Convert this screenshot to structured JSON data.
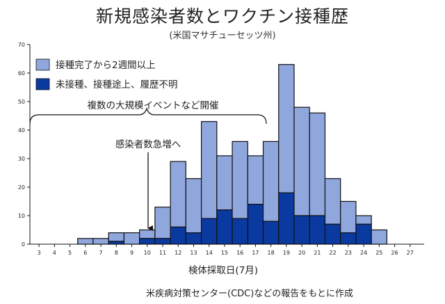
{
  "header": {
    "title": "新規感染者数とワクチン接種歴",
    "subtitle": "(米国マサチューセッツ州)"
  },
  "footer": {
    "source": "米疾病対策センター(CDC)などの報告をもとに作成"
  },
  "colors": {
    "vaccinated": "#8fa7dd",
    "unvaccinated": "#0a3aa0",
    "outline": "#111111"
  },
  "chart_data": {
    "type": "bar",
    "stacked": true,
    "xlabel": "検体採取日(7月)",
    "ylabel": "",
    "ylim": [
      0,
      70
    ],
    "yticks": [
      0,
      10,
      20,
      30,
      40,
      50,
      60,
      70
    ],
    "categories": [
      "3",
      "4",
      "5",
      "6",
      "7",
      "8",
      "9",
      "10",
      "11",
      "12",
      "13",
      "14",
      "15",
      "16",
      "17",
      "18",
      "19",
      "20",
      "21",
      "22",
      "23",
      "24",
      "25",
      "26",
      "27"
    ],
    "series": [
      {
        "name": "未接種、接種途上、履歴不明",
        "values": [
          0,
          0,
          0,
          0,
          0,
          1,
          0,
          2,
          2,
          6,
          4,
          9,
          12,
          9,
          14,
          8,
          18,
          10,
          10,
          7,
          4,
          7,
          0,
          0,
          0
        ]
      },
      {
        "name": "接種完了から2週間以上",
        "values": [
          0,
          0,
          0,
          2,
          2,
          3,
          4,
          3,
          11,
          23,
          19,
          34,
          19,
          27,
          17,
          28,
          45,
          38,
          36,
          16,
          11,
          3,
          5,
          0,
          0
        ]
      }
    ],
    "totals": [
      0,
      0,
      0,
      2,
      2,
      4,
      4,
      5,
      13,
      29,
      23,
      43,
      31,
      36,
      31,
      36,
      63,
      48,
      46,
      23,
      15,
      10,
      5,
      0,
      0
    ],
    "legend_position": "top-left",
    "grid": false,
    "annotations": {
      "event": "複数の大規模イベントなど開催",
      "surge": "感染者数急増へ"
    }
  }
}
